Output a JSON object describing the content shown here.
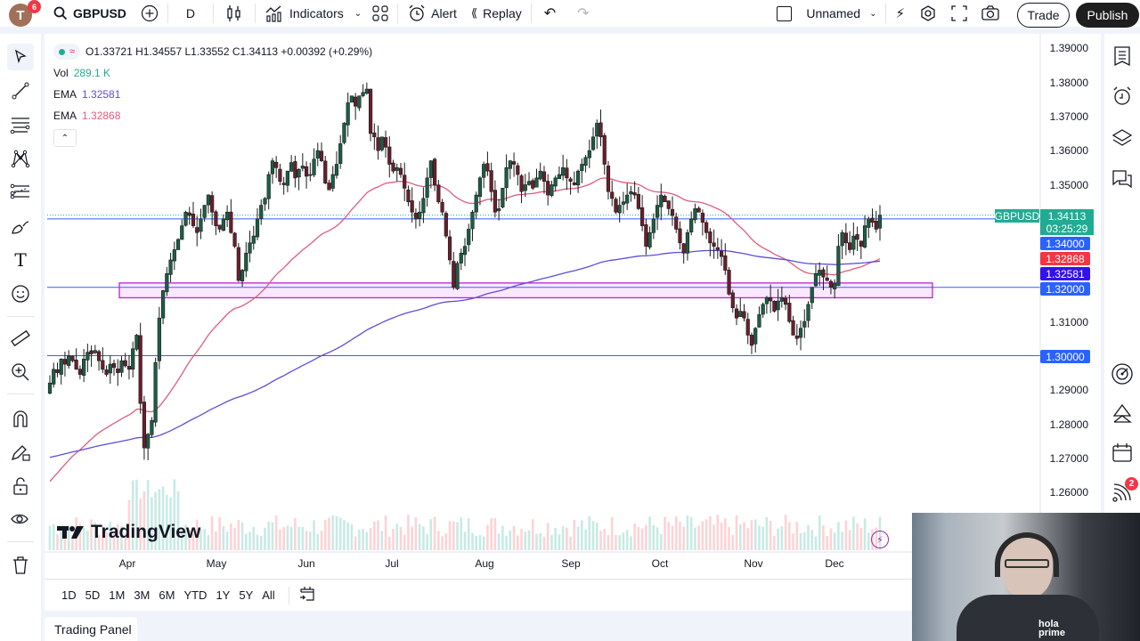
{
  "topbar": {
    "avatar_letter": "T",
    "avatar_badge": "6",
    "symbol": "GBPUSD",
    "interval": "D",
    "indicators_label": "Indicators",
    "alert_label": "Alert",
    "replay_label": "Replay",
    "layout_name": "Unnamed",
    "trade_label": "Trade",
    "publish_label": "Publish"
  },
  "legend": {
    "ohlc": "O1.33721 H1.34557 L1.33552 C1.34113 +0.00392 (+0.29%)",
    "vol_label": "Vol",
    "vol_value": "289.1 K",
    "ema1_label": "EMA",
    "ema1_value": "1.32581",
    "ema2_label": "EMA",
    "ema2_value": "1.32868"
  },
  "price_axis": {
    "ticks": [
      "1.39000",
      "1.38000",
      "1.37000",
      "1.36000",
      "1.35000",
      "1.31000",
      "1.29000",
      "1.28000",
      "1.27000",
      "1.26000"
    ],
    "labels": {
      "symbol_tag": "GBPUSD",
      "last_price": "1.34113",
      "countdown": "03:25:29",
      "line_134": "1.34000",
      "ema_red": "1.32868",
      "ema_blue": "1.32581",
      "line_132": "1.32000",
      "line_130": "1.30000"
    }
  },
  "time_axis": {
    "months": [
      "Apr",
      "May",
      "Jun",
      "Jul",
      "Aug",
      "Sep",
      "Oct",
      "Nov",
      "Dec"
    ]
  },
  "range_bar": {
    "ranges": [
      "1D",
      "5D",
      "1M",
      "3M",
      "6M",
      "YTD",
      "1Y",
      "5Y",
      "All"
    ]
  },
  "trading_panel_label": "Trading Panel",
  "watermark": "TradingView",
  "right_toolbar": {
    "notification_badge": "2"
  },
  "colors": {
    "up": "#22ab94",
    "down": "#8b1e38",
    "candle_up_body": "#1b5e46",
    "candle_down_body": "#6b1e2d",
    "ema_red": "#e05c7a",
    "ema_blue": "#5b4fd6",
    "hline": "#2962ff",
    "zone_fill": "rgba(224,64,251,0.12)",
    "zone_border": "#c020d8",
    "label_green": "#22ab94",
    "label_blue": "#2962ff",
    "label_red": "#f23645",
    "label_indigo": "#3311ee"
  },
  "chart_data": {
    "type": "candlestick",
    "symbol": "GBPUSD",
    "interval": "1D",
    "ylim": [
      1.255,
      1.395
    ],
    "horizontal_lines": [
      1.34,
      1.32,
      1.3
    ],
    "zone": {
      "from": "Mar 31",
      "to": "Dec 31",
      "low": 1.3172,
      "high": 1.321
    },
    "last": {
      "open": 1.33721,
      "high": 1.34557,
      "low": 1.33552,
      "close": 1.34113,
      "change": 0.00392,
      "change_pct": 0.29
    },
    "ema_fast_last": 1.32868,
    "ema_slow_last": 1.32581,
    "closes": [
      1.292,
      1.296,
      1.295,
      1.299,
      1.2975,
      1.3,
      1.2985,
      1.296,
      1.2945,
      1.299,
      1.301,
      1.3005,
      1.3015,
      1.2985,
      1.296,
      1.2945,
      1.2975,
      1.2965,
      1.295,
      1.2985,
      1.297,
      1.296,
      1.302,
      1.306,
      1.286,
      1.273,
      1.277,
      1.281,
      1.298,
      1.311,
      1.319,
      1.324,
      1.328,
      1.331,
      1.334,
      1.338,
      1.342,
      1.341,
      1.338,
      1.336,
      1.34,
      1.344,
      1.347,
      1.342,
      1.338,
      1.337,
      1.34,
      1.342,
      1.336,
      1.332,
      1.322,
      1.325,
      1.33,
      1.333,
      1.335,
      1.34,
      1.344,
      1.346,
      1.353,
      1.357,
      1.355,
      1.351,
      1.35,
      1.354,
      1.3565,
      1.352,
      1.3545,
      1.3555,
      1.3525,
      1.353,
      1.3575,
      1.36,
      1.357,
      1.3505,
      1.3485,
      1.353,
      1.356,
      1.362,
      1.368,
      1.374,
      1.376,
      1.373,
      1.376,
      1.377,
      1.378,
      1.365,
      1.364,
      1.36,
      1.364,
      1.361,
      1.356,
      1.354,
      1.355,
      1.353,
      1.349,
      1.345,
      1.342,
      1.34,
      1.342,
      1.346,
      1.352,
      1.357,
      1.35,
      1.345,
      1.342,
      1.335,
      1.328,
      1.32,
      1.327,
      1.33,
      1.332,
      1.337,
      1.342,
      1.347,
      1.352,
      1.356,
      1.354,
      1.348,
      1.342,
      1.343,
      1.349,
      1.355,
      1.357,
      1.356,
      1.353,
      1.348,
      1.35,
      1.351,
      1.349,
      1.352,
      1.354,
      1.351,
      1.347,
      1.35,
      1.352,
      1.353,
      1.355,
      1.352,
      1.351,
      1.35,
      1.354,
      1.356,
      1.358,
      1.36,
      1.364,
      1.368,
      1.364,
      1.356,
      1.348,
      1.346,
      1.342,
      1.344,
      1.345,
      1.347,
      1.348,
      1.347,
      1.343,
      1.338,
      1.332,
      1.336,
      1.34,
      1.344,
      1.347,
      1.345,
      1.343,
      1.341,
      1.337,
      1.333,
      1.33,
      1.336,
      1.34,
      1.343,
      1.342,
      1.339,
      1.336,
      1.333,
      1.332,
      1.331,
      1.329,
      1.325,
      1.318,
      1.314,
      1.311,
      1.313,
      1.311,
      1.306,
      1.303,
      1.308,
      1.312,
      1.315,
      1.317,
      1.316,
      1.313,
      1.316,
      1.317,
      1.315,
      1.31,
      1.306,
      1.305,
      1.308,
      1.31,
      1.315,
      1.32,
      1.324,
      1.325,
      1.323,
      1.322,
      1.32,
      1.321,
      1.332,
      1.336,
      1.333,
      1.331,
      1.335,
      1.334,
      1.332,
      1.338,
      1.34,
      1.339,
      1.337,
      1.3411
    ]
  }
}
